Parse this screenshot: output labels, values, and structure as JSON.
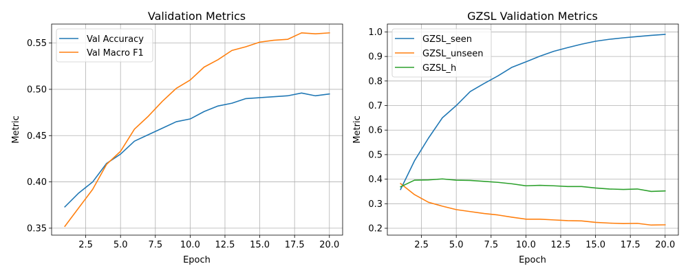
{
  "chart_data": [
    {
      "type": "line",
      "title": "Validation Metrics",
      "xlabel": "Epoch",
      "ylabel": "Metric",
      "xlim": [
        0.05,
        20.95
      ],
      "ylim": [
        0.3425,
        0.5705
      ],
      "xticks": [
        2.5,
        5.0,
        7.5,
        10.0,
        12.5,
        15.0,
        17.5,
        20.0
      ],
      "xtick_labels": [
        "2.5",
        "5.0",
        "7.5",
        "10.0",
        "12.5",
        "15.0",
        "17.5",
        "20.0"
      ],
      "yticks": [
        0.35,
        0.4,
        0.45,
        0.5,
        0.55
      ],
      "ytick_labels": [
        "0.35",
        "0.40",
        "0.45",
        "0.50",
        "0.55"
      ],
      "grid": true,
      "legend_position": "top-left",
      "x": [
        1,
        2,
        3,
        4,
        5,
        6,
        7,
        8,
        9,
        10,
        11,
        12,
        13,
        14,
        15,
        16,
        17,
        18,
        19,
        20
      ],
      "series": [
        {
          "name": "Val Accuracy",
          "color": "#1f77b4",
          "values": [
            0.373,
            0.388,
            0.4,
            0.42,
            0.43,
            0.444,
            0.451,
            0.458,
            0.465,
            0.468,
            0.476,
            0.482,
            0.485,
            0.49,
            0.491,
            0.492,
            0.493,
            0.496,
            0.493,
            0.495
          ]
        },
        {
          "name": "Val Macro F1",
          "color": "#ff7f0e",
          "values": [
            0.352,
            0.372,
            0.392,
            0.419,
            0.433,
            0.457,
            0.471,
            0.487,
            0.501,
            0.51,
            0.524,
            0.532,
            0.542,
            0.546,
            0.551,
            0.553,
            0.554,
            0.561,
            0.56,
            0.561
          ]
        }
      ]
    },
    {
      "type": "line",
      "title": "GZSL Validation Metrics",
      "xlabel": "Epoch",
      "ylabel": "Metric",
      "xlim": [
        0.05,
        20.95
      ],
      "ylim": [
        0.172,
        1.032
      ],
      "xticks": [
        2.5,
        5.0,
        7.5,
        10.0,
        12.5,
        15.0,
        17.5,
        20.0
      ],
      "xtick_labels": [
        "2.5",
        "5.0",
        "7.5",
        "10.0",
        "12.5",
        "15.0",
        "17.5",
        "20.0"
      ],
      "yticks": [
        0.2,
        0.3,
        0.4,
        0.5,
        0.6,
        0.7,
        0.8,
        0.9,
        1.0
      ],
      "ytick_labels": [
        "0.2",
        "0.3",
        "0.4",
        "0.5",
        "0.6",
        "0.7",
        "0.8",
        "0.9",
        "1.0"
      ],
      "grid": true,
      "legend_position": "top-left",
      "x": [
        1,
        2,
        3,
        4,
        5,
        6,
        7,
        8,
        9,
        10,
        11,
        12,
        13,
        14,
        15,
        16,
        17,
        18,
        19,
        20
      ],
      "series": [
        {
          "name": "GZSL_seen",
          "color": "#1f77b4",
          "values": [
            0.358,
            0.475,
            0.567,
            0.65,
            0.7,
            0.757,
            0.79,
            0.821,
            0.856,
            0.878,
            0.901,
            0.921,
            0.936,
            0.95,
            0.962,
            0.97,
            0.976,
            0.981,
            0.986,
            0.99
          ]
        },
        {
          "name": "GZSL_unseen",
          "color": "#ff7f0e",
          "values": [
            0.382,
            0.337,
            0.306,
            0.29,
            0.276,
            0.268,
            0.26,
            0.254,
            0.245,
            0.237,
            0.237,
            0.234,
            0.231,
            0.23,
            0.224,
            0.221,
            0.219,
            0.22,
            0.213,
            0.214
          ]
        },
        {
          "name": "GZSL_h",
          "color": "#2ca02c",
          "values": [
            0.369,
            0.396,
            0.397,
            0.401,
            0.396,
            0.395,
            0.391,
            0.387,
            0.381,
            0.373,
            0.375,
            0.373,
            0.37,
            0.37,
            0.364,
            0.36,
            0.358,
            0.36,
            0.35,
            0.352
          ]
        }
      ]
    }
  ]
}
